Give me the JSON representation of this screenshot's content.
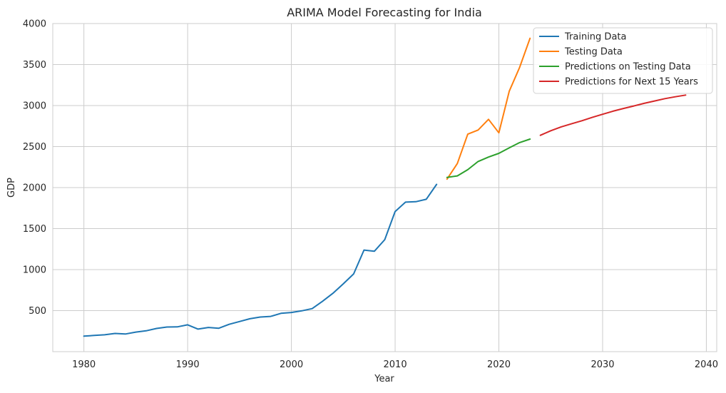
{
  "chart_data": {
    "type": "line",
    "title": "ARIMA Model Forecasting for India",
    "xlabel": "Year",
    "ylabel": "GDP",
    "xlim": [
      1977,
      2041
    ],
    "ylim": [
      0,
      4000
    ],
    "xticks": [
      1980,
      1990,
      2000,
      2010,
      2020,
      2030,
      2040
    ],
    "yticks": [
      500,
      1000,
      1500,
      2000,
      2500,
      3000,
      3500,
      4000
    ],
    "grid": true,
    "legend_position": "top-right",
    "series": [
      {
        "name": "Training Data",
        "color": "#1f77b4",
        "x": [
          1980,
          1981,
          1982,
          1983,
          1984,
          1985,
          1986,
          1987,
          1988,
          1989,
          1990,
          1991,
          1992,
          1993,
          1994,
          1995,
          1996,
          1997,
          1998,
          1999,
          2000,
          2001,
          2002,
          2003,
          2004,
          2005,
          2006,
          2007,
          2008,
          2009,
          2010,
          2011,
          2012,
          2013,
          2014
        ],
        "y": [
          189,
          197,
          205,
          222,
          215,
          238,
          254,
          283,
          300,
          302,
          327,
          275,
          295,
          285,
          333,
          367,
          401,
          422,
          430,
          467,
          477,
          497,
          524,
          614,
          711,
          826,
          948,
          1238,
          1224,
          1365,
          1708,
          1823,
          1828,
          1857,
          2039
        ]
      },
      {
        "name": "Testing Data",
        "color": "#ff7f0e",
        "x": [
          2015,
          2016,
          2017,
          2018,
          2019,
          2020,
          2021,
          2022,
          2023
        ],
        "y": [
          2103,
          2294,
          2651,
          2702,
          2832,
          2668,
          3176,
          3465,
          3820
        ]
      },
      {
        "name": "Predictions on Testing Data",
        "color": "#2ca02c",
        "x": [
          2015,
          2016,
          2017,
          2018,
          2019,
          2020,
          2021,
          2022,
          2023
        ],
        "y": [
          2124,
          2143,
          2218,
          2318,
          2372,
          2417,
          2484,
          2549,
          2591
        ]
      },
      {
        "name": "Predictions for Next 15 Years",
        "color": "#d62728",
        "x": [
          2024,
          2025,
          2026,
          2027,
          2028,
          2029,
          2030,
          2031,
          2032,
          2033,
          2034,
          2035,
          2036,
          2037,
          2038
        ],
        "y": [
          2637,
          2693,
          2740,
          2777,
          2815,
          2856,
          2894,
          2931,
          2964,
          2995,
          3027,
          3056,
          3084,
          3107,
          3128
        ]
      }
    ]
  }
}
